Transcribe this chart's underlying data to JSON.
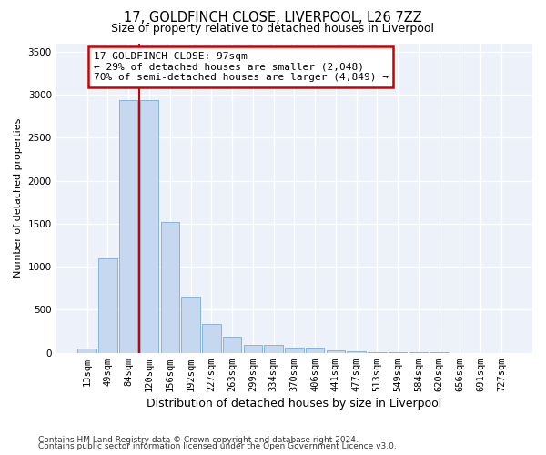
{
  "title_line1": "17, GOLDFINCH CLOSE, LIVERPOOL, L26 7ZZ",
  "title_line2": "Size of property relative to detached houses in Liverpool",
  "xlabel": "Distribution of detached houses by size in Liverpool",
  "ylabel": "Number of detached properties",
  "categories": [
    "13sqm",
    "49sqm",
    "84sqm",
    "120sqm",
    "156sqm",
    "192sqm",
    "227sqm",
    "263sqm",
    "299sqm",
    "334sqm",
    "370sqm",
    "406sqm",
    "441sqm",
    "477sqm",
    "513sqm",
    "549sqm",
    "584sqm",
    "620sqm",
    "656sqm",
    "691sqm",
    "727sqm"
  ],
  "values": [
    50,
    1100,
    2940,
    2940,
    1520,
    650,
    340,
    185,
    95,
    90,
    60,
    55,
    30,
    20,
    10,
    8,
    5,
    3,
    2,
    2,
    1
  ],
  "bar_color": "#c5d8f0",
  "bar_edgecolor": "#7aadd4",
  "vline_color": "#cc0000",
  "vline_x": 2.5,
  "annotation_text": "17 GOLDFINCH CLOSE: 97sqm\n← 29% of detached houses are smaller (2,048)\n70% of semi-detached houses are larger (4,849) →",
  "annotation_box_edgecolor": "#cc0000",
  "ylim": [
    0,
    3600
  ],
  "yticks": [
    0,
    500,
    1000,
    1500,
    2000,
    2500,
    3000,
    3500
  ],
  "bg_color": "#edf1f9",
  "grid_color": "#ffffff",
  "footer_line1": "Contains HM Land Registry data © Crown copyright and database right 2024.",
  "footer_line2": "Contains public sector information licensed under the Open Government Licence v3.0.",
  "title_fontsize": 10.5,
  "subtitle_fontsize": 9,
  "ylabel_fontsize": 8,
  "xlabel_fontsize": 9,
  "tick_fontsize": 7.5,
  "annot_fontsize": 8,
  "footer_fontsize": 6.5
}
